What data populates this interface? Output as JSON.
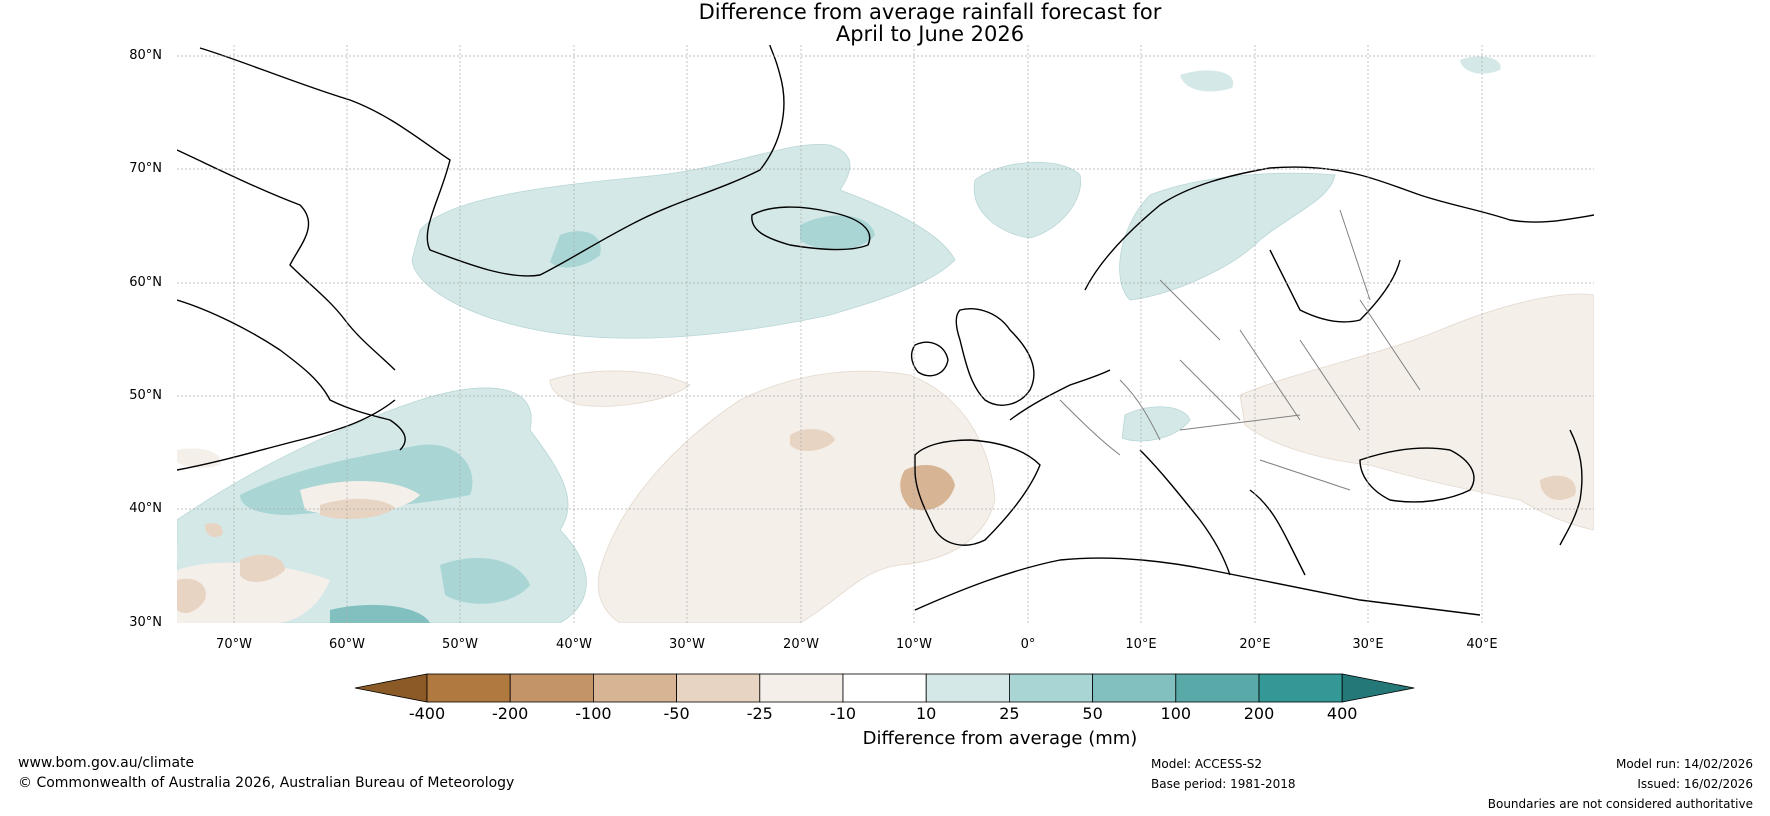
{
  "title": {
    "line1": "Difference from average rainfall forecast for",
    "line2": "April to June 2026"
  },
  "map": {
    "latitude_labels": [
      "80°N",
      "70°N",
      "60°N",
      "50°N",
      "40°N",
      "30°N"
    ],
    "longitude_labels": [
      "70°W",
      "60°W",
      "50°W",
      "40°W",
      "30°W",
      "20°W",
      "10°W",
      "0°",
      "10°E",
      "20°E",
      "30°E",
      "40°E"
    ],
    "colors": {
      "coastline": "#000000",
      "border": "#808080",
      "grid": "#aaaaaa"
    }
  },
  "colorbar": {
    "tick_labels": [
      "-400",
      "-200",
      "-100",
      "-50",
      "-25",
      "-10",
      "10",
      "25",
      "50",
      "100",
      "200",
      "400"
    ],
    "colors": [
      "#8c5a27",
      "#b07940",
      "#c49469",
      "#d7b493",
      "#e8d4c3",
      "#f4efe9",
      "#ffffff",
      "#d4e8e8",
      "#a9d5d5",
      "#82c0bf",
      "#5aa9a9",
      "#349897",
      "#257878"
    ],
    "title": "Difference from average (mm)"
  },
  "footer": {
    "website": "www.bom.gov.au/climate",
    "copyright": "© Commonwealth of Australia 2026, Australian Bureau of Meteorology",
    "model": "Model: ACCESS-S2",
    "base_period": "Base period: 1981-2018",
    "model_run": "Model run: 14/02/2026",
    "issued": "Issued: 16/02/2026",
    "disclaimer": "Boundaries are not considered authoritative"
  }
}
